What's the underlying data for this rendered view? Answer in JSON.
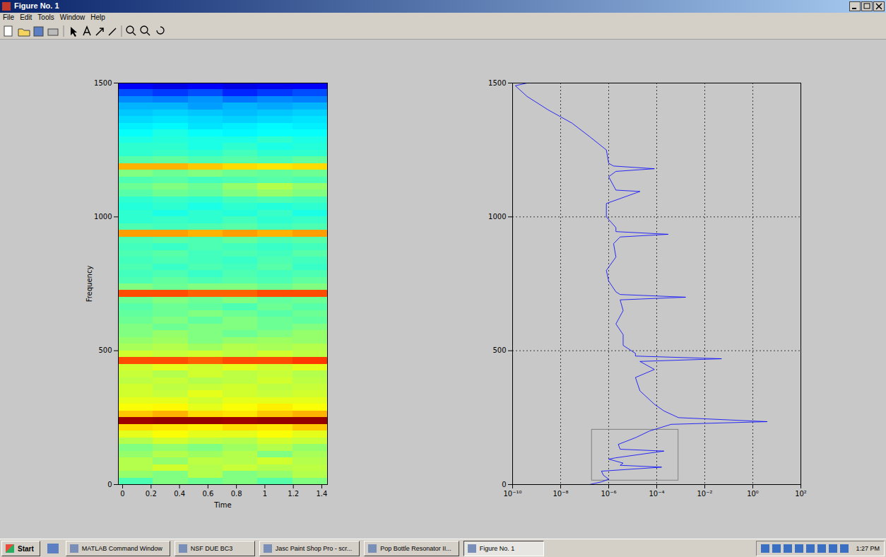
{
  "window": {
    "title": "Figure No. 1",
    "menu": [
      "File",
      "Edit",
      "Tools",
      "Window",
      "Help"
    ]
  },
  "taskbar": {
    "start": "Start",
    "items": [
      "MATLAB Command Window",
      "NSF DUE BC3",
      "Jasc Paint Shop Pro - scr...",
      "Pop Bottle Resonator II...",
      "Figure No. 1"
    ],
    "clock": "1:27 PM"
  },
  "chart_data": [
    {
      "type": "heatmap",
      "x_label": "Time",
      "y_label": "Frequency",
      "xlim": [
        -0.03,
        1.44
      ],
      "xticks": [
        0,
        0.2,
        0.4,
        0.6,
        0.8,
        1,
        1.2,
        1.4
      ],
      "ylim": [
        0,
        1500
      ],
      "yticks": [
        0,
        500,
        1000,
        1500
      ],
      "zlim": [
        0,
        1
      ],
      "x_bins": [
        -0.03,
        0.215,
        0.46,
        0.705,
        0.95,
        1.195,
        1.44
      ],
      "y_bins": [
        0,
        25,
        50,
        75,
        100,
        125,
        150,
        175,
        200,
        225,
        250,
        275,
        300,
        325,
        350,
        375,
        400,
        425,
        450,
        475,
        500,
        525,
        550,
        575,
        600,
        625,
        650,
        675,
        700,
        725,
        750,
        775,
        800,
        825,
        850,
        875,
        900,
        925,
        950,
        975,
        1000,
        1025,
        1050,
        1075,
        1100,
        1125,
        1150,
        1175,
        1200,
        1225,
        1250,
        1275,
        1300,
        1325,
        1350,
        1375,
        1400,
        1425,
        1450,
        1475,
        1500
      ],
      "cells": [
        [
          0.45,
          0.5,
          0.48,
          0.5,
          0.46,
          0.5
        ],
        [
          0.52,
          0.5,
          0.55,
          0.5,
          0.52,
          0.55
        ],
        [
          0.55,
          0.58,
          0.55,
          0.57,
          0.55,
          0.56
        ],
        [
          0.55,
          0.52,
          0.56,
          0.55,
          0.58,
          0.55
        ],
        [
          0.52,
          0.55,
          0.53,
          0.55,
          0.5,
          0.54
        ],
        [
          0.5,
          0.52,
          0.5,
          0.53,
          0.55,
          0.52
        ],
        [
          0.55,
          0.58,
          0.56,
          0.55,
          0.58,
          0.57
        ],
        [
          0.6,
          0.62,
          0.6,
          0.6,
          0.62,
          0.6
        ],
        [
          0.66,
          0.65,
          0.64,
          0.66,
          0.65,
          0.68
        ],
        [
          0.97,
          0.98,
          0.98,
          0.97,
          0.98,
          0.98
        ],
        [
          0.68,
          0.7,
          0.66,
          0.65,
          0.68,
          0.7
        ],
        [
          0.62,
          0.63,
          0.6,
          0.62,
          0.64,
          0.62
        ],
        [
          0.6,
          0.6,
          0.58,
          0.6,
          0.6,
          0.6
        ],
        [
          0.58,
          0.57,
          0.6,
          0.58,
          0.57,
          0.58
        ],
        [
          0.58,
          0.56,
          0.57,
          0.58,
          0.56,
          0.57
        ],
        [
          0.56,
          0.57,
          0.55,
          0.56,
          0.58,
          0.56
        ],
        [
          0.57,
          0.55,
          0.58,
          0.56,
          0.57,
          0.55
        ],
        [
          0.58,
          0.6,
          0.58,
          0.6,
          0.58,
          0.6
        ],
        [
          0.8,
          0.8,
          0.78,
          0.8,
          0.8,
          0.82
        ],
        [
          0.58,
          0.57,
          0.58,
          0.56,
          0.58,
          0.56
        ],
        [
          0.54,
          0.55,
          0.53,
          0.55,
          0.54,
          0.55
        ],
        [
          0.52,
          0.53,
          0.5,
          0.52,
          0.53,
          0.52
        ],
        [
          0.5,
          0.52,
          0.5,
          0.48,
          0.5,
          0.52
        ],
        [
          0.5,
          0.48,
          0.5,
          0.5,
          0.48,
          0.5
        ],
        [
          0.48,
          0.5,
          0.47,
          0.5,
          0.48,
          0.47
        ],
        [
          0.47,
          0.48,
          0.5,
          0.48,
          0.46,
          0.48
        ],
        [
          0.46,
          0.48,
          0.47,
          0.45,
          0.48,
          0.46
        ],
        [
          0.48,
          0.5,
          0.48,
          0.5,
          0.47,
          0.48
        ],
        [
          0.8,
          0.8,
          0.78,
          0.78,
          0.8,
          0.8
        ],
        [
          0.5,
          0.48,
          0.5,
          0.5,
          0.48,
          0.5
        ],
        [
          0.45,
          0.47,
          0.45,
          0.46,
          0.45,
          0.47
        ],
        [
          0.44,
          0.45,
          0.43,
          0.45,
          0.44,
          0.45
        ],
        [
          0.45,
          0.43,
          0.45,
          0.44,
          0.46,
          0.43
        ],
        [
          0.44,
          0.45,
          0.44,
          0.43,
          0.45,
          0.44
        ],
        [
          0.45,
          0.46,
          0.44,
          0.45,
          0.44,
          0.46
        ],
        [
          0.44,
          0.43,
          0.45,
          0.44,
          0.43,
          0.44
        ],
        [
          0.45,
          0.46,
          0.45,
          0.47,
          0.45,
          0.46
        ],
        [
          0.72,
          0.72,
          0.7,
          0.72,
          0.7,
          0.72
        ],
        [
          0.45,
          0.44,
          0.45,
          0.46,
          0.44,
          0.45
        ],
        [
          0.42,
          0.43,
          0.42,
          0.44,
          0.42,
          0.43
        ],
        [
          0.42,
          0.4,
          0.42,
          0.41,
          0.43,
          0.4
        ],
        [
          0.41,
          0.42,
          0.4,
          0.42,
          0.41,
          0.42
        ],
        [
          0.42,
          0.43,
          0.42,
          0.44,
          0.45,
          0.44
        ],
        [
          0.46,
          0.48,
          0.47,
          0.5,
          0.52,
          0.5
        ],
        [
          0.48,
          0.5,
          0.48,
          0.52,
          0.55,
          0.52
        ],
        [
          0.45,
          0.46,
          0.44,
          0.45,
          0.46,
          0.45
        ],
        [
          0.5,
          0.48,
          0.5,
          0.48,
          0.47,
          0.48
        ],
        [
          0.7,
          0.7,
          0.68,
          0.66,
          0.65,
          0.66
        ],
        [
          0.46,
          0.47,
          0.45,
          0.46,
          0.45,
          0.47
        ],
        [
          0.42,
          0.43,
          0.42,
          0.44,
          0.42,
          0.42
        ],
        [
          0.42,
          0.42,
          0.4,
          0.42,
          0.4,
          0.41
        ],
        [
          0.4,
          0.41,
          0.4,
          0.4,
          0.42,
          0.4
        ],
        [
          0.38,
          0.4,
          0.38,
          0.37,
          0.38,
          0.38
        ],
        [
          0.36,
          0.37,
          0.35,
          0.36,
          0.37,
          0.36
        ],
        [
          0.34,
          0.35,
          0.34,
          0.33,
          0.34,
          0.35
        ],
        [
          0.32,
          0.33,
          0.32,
          0.31,
          0.32,
          0.33
        ],
        [
          0.3,
          0.3,
          0.28,
          0.3,
          0.29,
          0.3
        ],
        [
          0.26,
          0.25,
          0.27,
          0.24,
          0.26,
          0.25
        ],
        [
          0.2,
          0.18,
          0.2,
          0.16,
          0.18,
          0.2
        ],
        [
          0.12,
          0.1,
          0.12,
          0.1,
          0.11,
          0.12
        ]
      ]
    },
    {
      "type": "line",
      "log": "x",
      "grid": true,
      "color": "#0000ff",
      "xlim": [
        1e-10,
        100
      ],
      "xticks": [
        {
          "value": 1e-10,
          "label": "10⁻¹⁰"
        },
        {
          "value": 1e-08,
          "label": "10⁻⁸"
        },
        {
          "value": 1e-06,
          "label": "10⁻⁶"
        },
        {
          "value": 0.0001,
          "label": "10⁻⁴"
        },
        {
          "value": 0.01,
          "label": "10⁻²"
        },
        {
          "value": 1,
          "label": "10⁰"
        },
        {
          "value": 100,
          "label": "10²"
        }
      ],
      "ylim": [
        0,
        1500
      ],
      "yticks": [
        0,
        500,
        1000,
        1500
      ],
      "y": [
        0,
        10,
        20,
        35,
        50,
        65,
        72,
        80,
        95,
        100,
        125,
        132,
        150,
        175,
        200,
        225,
        235,
        250,
        275,
        300,
        350,
        400,
        430,
        460,
        470,
        480,
        490,
        520,
        560,
        600,
        650,
        690,
        700,
        710,
        720,
        760,
        800,
        850,
        900,
        925,
        935,
        945,
        960,
        1000,
        1050,
        1095,
        1100,
        1150,
        1170,
        1180,
        1190,
        1200,
        1250,
        1300,
        1350,
        1400,
        1450,
        1490,
        1500
      ],
      "x": [
        1.6e-07,
        5e-07,
        1e-06,
        6e-07,
        5e-07,
        0.00016,
        3e-06,
        4e-06,
        1e-06,
        2e-06,
        0.0002,
        3e-06,
        2.5e-06,
        1.3e-05,
        5e-05,
        0.0004,
        4,
        0.0008,
        0.0002,
        8e-05,
        2e-05,
        1.3e-05,
        8e-05,
        2e-05,
        0.05,
        1.3e-05,
        1.3e-05,
        4e-06,
        4e-06,
        2e-06,
        4e-06,
        3e-06,
        0.0016,
        3e-06,
        2e-06,
        1e-06,
        8e-07,
        2e-06,
        1.6e-06,
        3e-06,
        0.0003,
        2e-06,
        2e-06,
        8e-07,
        8e-07,
        2e-05,
        2e-06,
        1e-06,
        2e-06,
        8e-05,
        1.6e-06,
        1e-06,
        8e-07,
        1.6e-07,
        3e-08,
        3e-09,
        4e-10,
        1.3e-10,
        4e-10
      ],
      "box": {
        "x": [
          2e-07,
          0.0008
        ],
        "y": [
          15,
          205
        ]
      }
    }
  ]
}
